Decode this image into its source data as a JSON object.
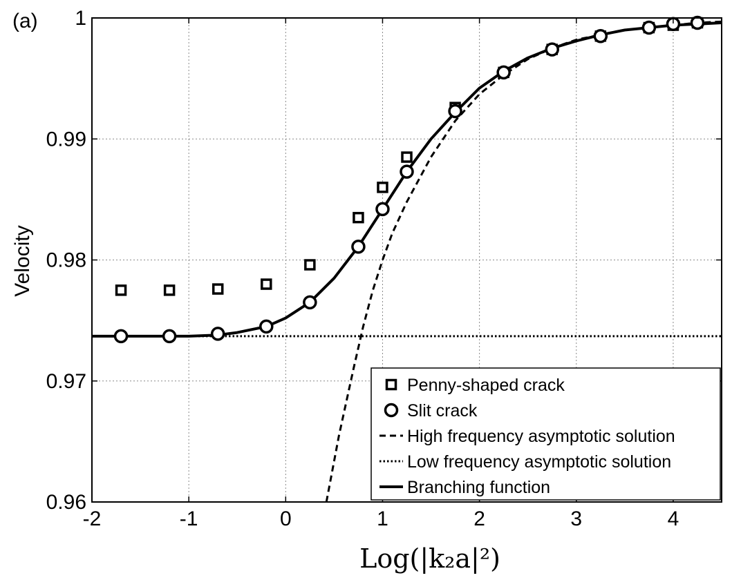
{
  "panel_label": "(a)",
  "chart_data": {
    "type": "scatter",
    "xlabel": "Log(|k₂a|²)",
    "ylabel": "Velocity",
    "xlim": [
      -2,
      4.5
    ],
    "ylim": [
      0.96,
      1.0
    ],
    "xticks": [
      -2,
      -1,
      0,
      1,
      2,
      3,
      4
    ],
    "xtick_labels": [
      "-2",
      "-1",
      "0",
      "1",
      "2",
      "3",
      "4"
    ],
    "yticks": [
      0.96,
      0.97,
      0.98,
      0.99,
      1.0
    ],
    "ytick_labels": [
      "0.96",
      "0.97",
      "0.98",
      "0.99",
      "1"
    ],
    "grid": true,
    "legend_position": "bottom-right",
    "series": [
      {
        "name": "Penny-shaped crack",
        "kind": "marker",
        "marker": "square",
        "x": [
          -1.7,
          -1.2,
          -0.7,
          -0.2,
          0.25,
          0.75,
          1.0,
          1.25,
          1.75,
          2.25,
          2.75,
          3.25,
          3.75,
          4.0,
          4.25
        ],
        "y": [
          0.9775,
          0.9775,
          0.9776,
          0.978,
          0.9796,
          0.9835,
          0.986,
          0.9885,
          0.9926,
          0.9955,
          0.9974,
          0.9985,
          0.9992,
          0.9994,
          0.9996
        ]
      },
      {
        "name": "Slit crack",
        "kind": "marker",
        "marker": "circle",
        "x": [
          -1.7,
          -1.2,
          -0.7,
          -0.2,
          0.25,
          0.75,
          1.0,
          1.25,
          1.75,
          2.25,
          2.75,
          3.25,
          3.75,
          4.0,
          4.25
        ],
        "y": [
          0.9737,
          0.9737,
          0.9739,
          0.9745,
          0.9765,
          0.9811,
          0.9842,
          0.9873,
          0.9923,
          0.9955,
          0.9974,
          0.9985,
          0.9992,
          0.9995,
          0.9996
        ]
      },
      {
        "name": "High frequency asymptotic solution",
        "kind": "line",
        "style": "dashed",
        "x": [
          0.42,
          0.55,
          0.7,
          0.8,
          0.9,
          1.0,
          1.1,
          1.25,
          1.5,
          1.75,
          2.0,
          2.25,
          2.5,
          2.75,
          3.0,
          3.25,
          3.5,
          3.75,
          4.0,
          4.25,
          4.5
        ],
        "y": [
          0.96,
          0.9655,
          0.971,
          0.9745,
          0.9775,
          0.98,
          0.9822,
          0.9848,
          0.9885,
          0.9915,
          0.9937,
          0.9953,
          0.9966,
          0.9975,
          0.9982,
          0.9986,
          0.999,
          0.9992,
          0.9994,
          0.9996,
          0.9997
        ]
      },
      {
        "name": "Low frequency asymptotic solution",
        "kind": "line",
        "style": "dotted",
        "x": [
          -2,
          4.5
        ],
        "y": [
          0.9737,
          0.9737
        ]
      },
      {
        "name": "Branching function",
        "kind": "line",
        "style": "solid",
        "x": [
          -2,
          -1.5,
          -1.0,
          -0.7,
          -0.5,
          -0.2,
          0.0,
          0.25,
          0.5,
          0.75,
          1.0,
          1.25,
          1.5,
          1.75,
          2.0,
          2.25,
          2.5,
          2.75,
          3.0,
          3.25,
          3.5,
          3.75,
          4.0,
          4.25,
          4.5
        ],
        "y": [
          0.9737,
          0.9737,
          0.9737,
          0.9738,
          0.974,
          0.9745,
          0.9752,
          0.9765,
          0.9785,
          0.9811,
          0.9842,
          0.9873,
          0.99,
          0.9922,
          0.9942,
          0.9956,
          0.9967,
          0.9975,
          0.9981,
          0.9986,
          0.999,
          0.9992,
          0.9994,
          0.9995,
          0.9996
        ]
      }
    ]
  }
}
